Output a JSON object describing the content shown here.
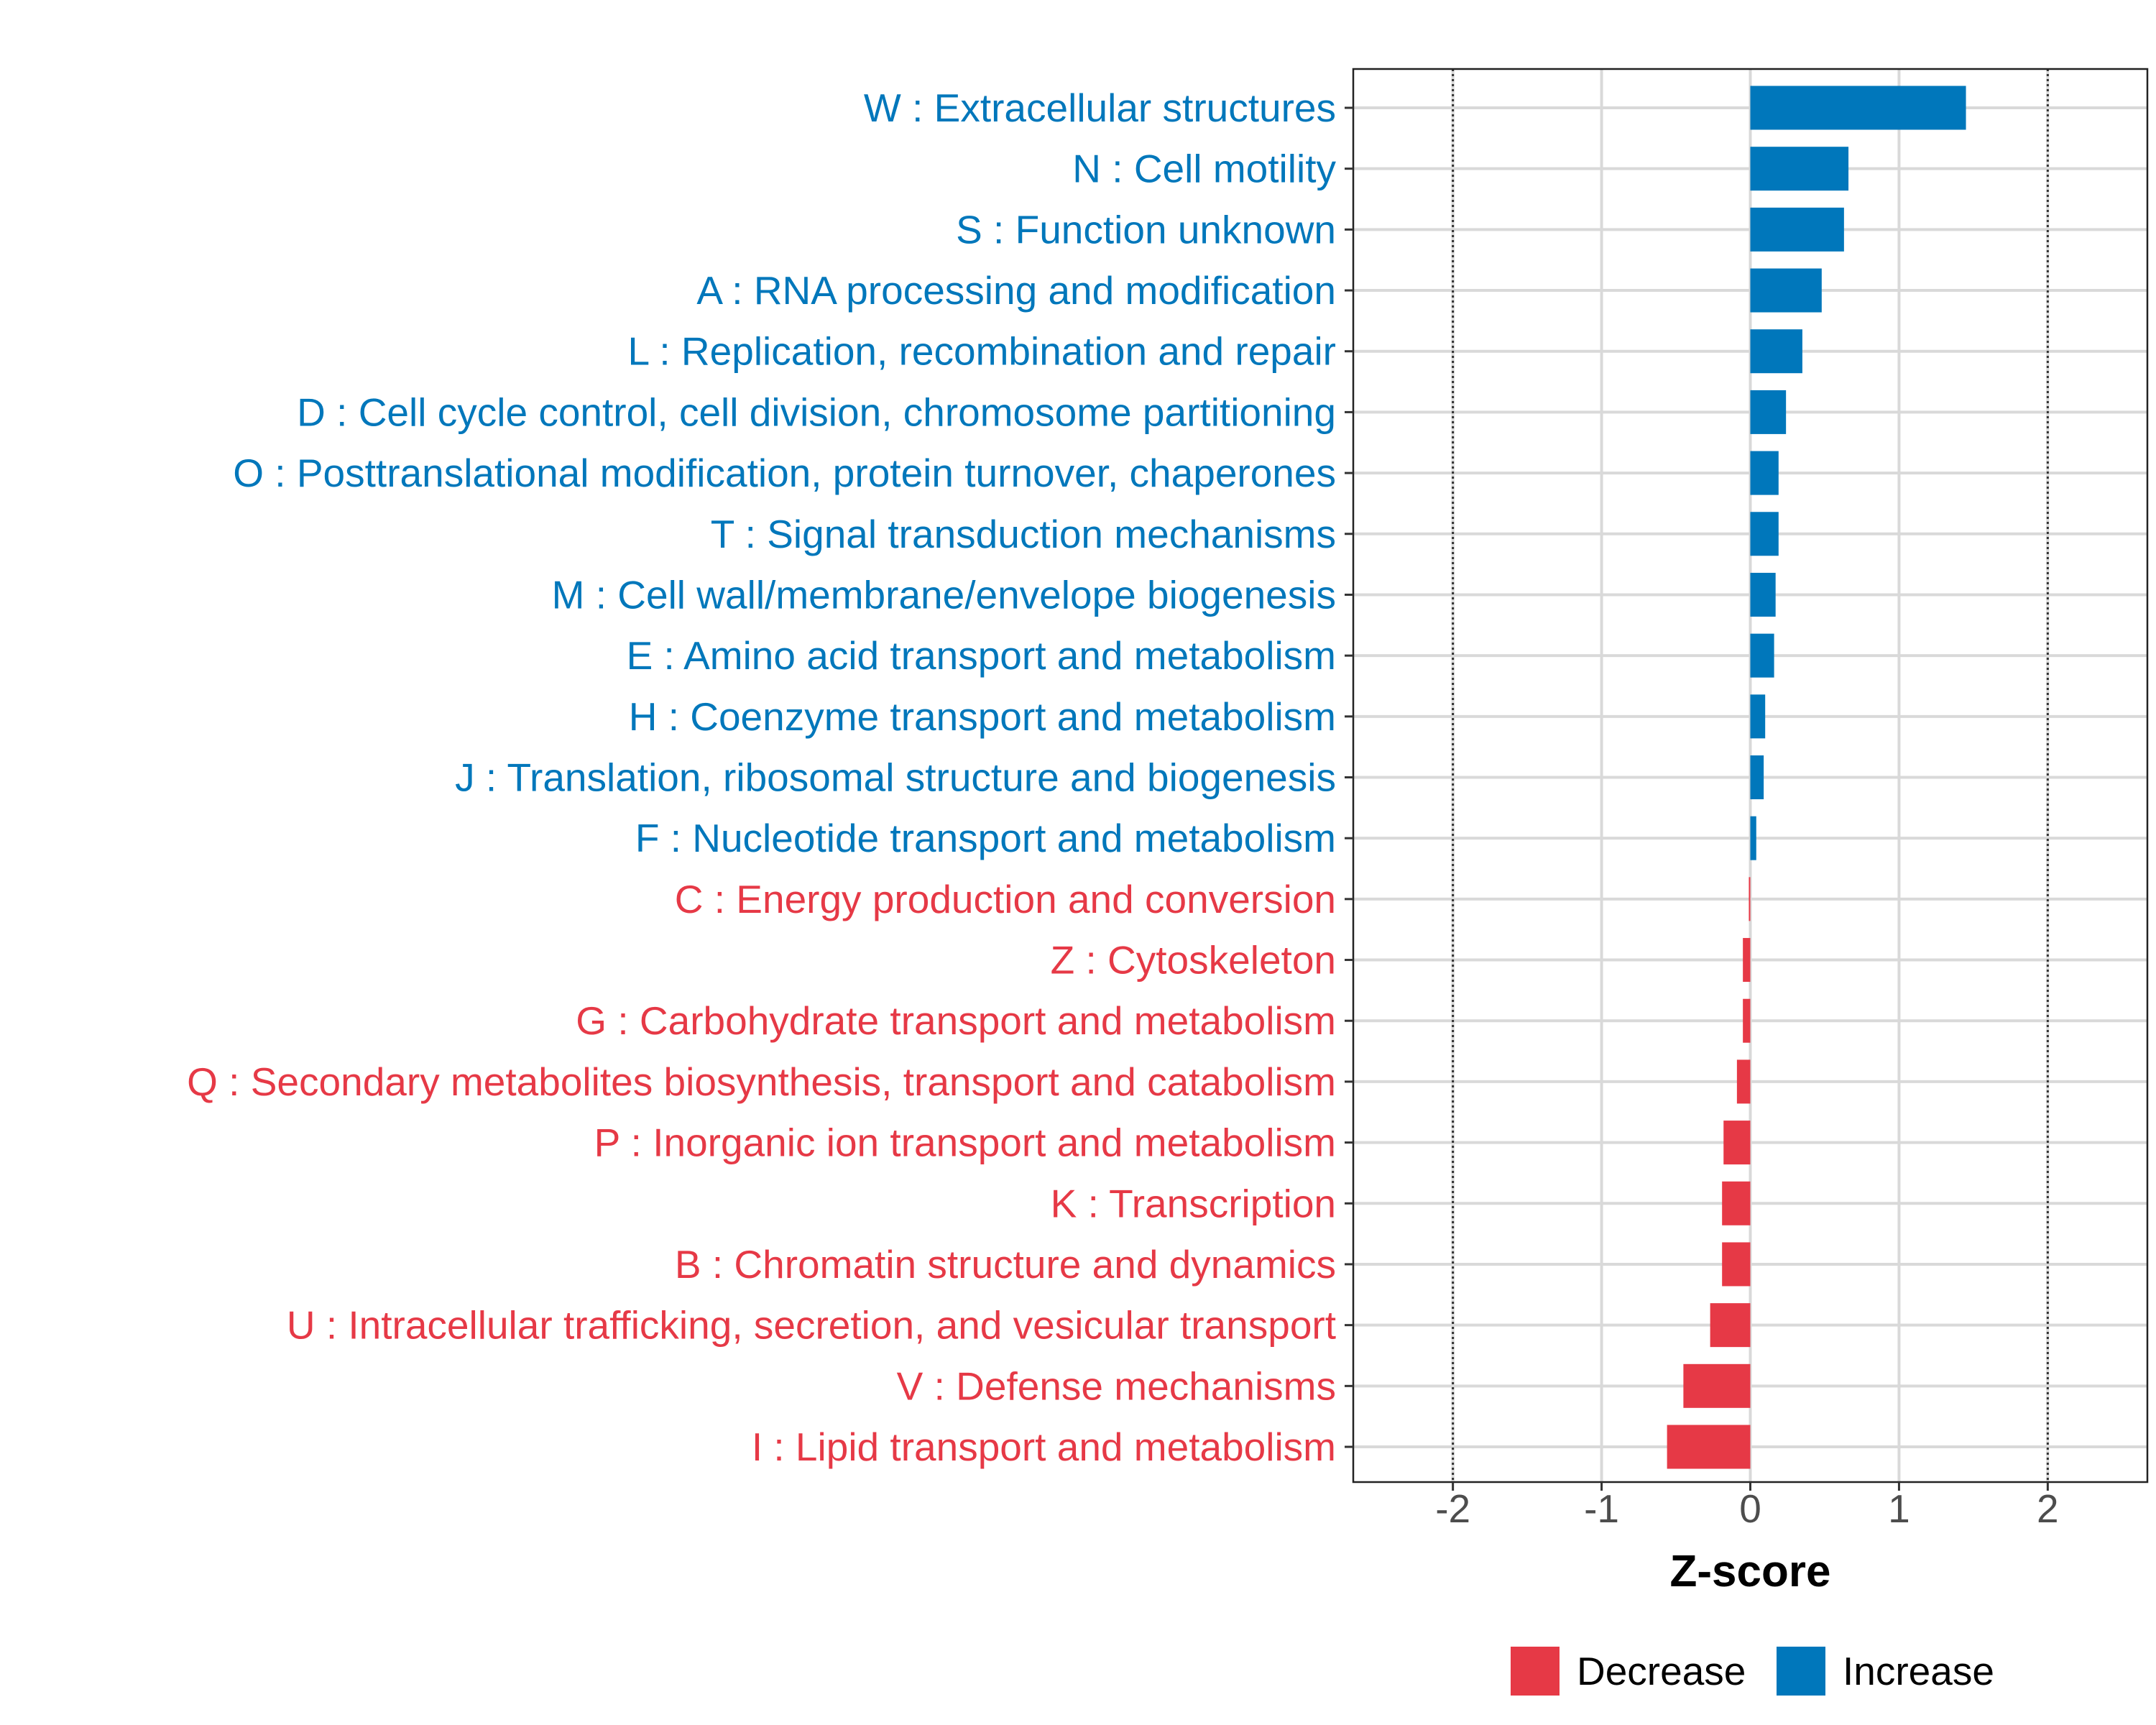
{
  "chart_data": {
    "type": "bar",
    "orientation": "horizontal",
    "title": "",
    "xlabel": "Z-score",
    "ylabel": "",
    "xlim": [
      -2.67,
      2.67
    ],
    "x_ticks": [
      -2,
      -1,
      0,
      1,
      2
    ],
    "x_tick_labels": [
      "-2",
      "-1",
      "0",
      "1",
      "2"
    ],
    "reference_lines": [
      -2,
      2
    ],
    "grid": true,
    "legend": {
      "position": "bottom",
      "entries": [
        {
          "label": "Decrease",
          "color": "#E63946"
        },
        {
          "label": "Increase",
          "color": "#0077BB"
        }
      ]
    },
    "categories": [
      "W : Extracellular structures",
      "N : Cell motility",
      "S : Function unknown",
      "A : RNA processing and modification",
      "L : Replication, recombination and repair",
      "D : Cell cycle control, cell division, chromosome partitioning",
      "O : Posttranslational modification, protein turnover, chaperones",
      "T : Signal transduction mechanisms",
      "M : Cell wall/membrane/envelope biogenesis",
      "E : Amino acid transport and metabolism",
      "H : Coenzyme transport and metabolism",
      "J : Translation, ribosomal structure and biogenesis",
      "F : Nucleotide transport and metabolism",
      "C : Energy production and conversion",
      "Z : Cytoskeleton",
      "G : Carbohydrate transport and metabolism",
      "Q : Secondary metabolites biosynthesis, transport and catabolism",
      "P : Inorganic ion transport and metabolism",
      "K : Transcription",
      "B : Chromatin structure and dynamics",
      "U : Intracellular trafficking, secretion, and vesicular transport",
      "V : Defense mechanisms",
      "I : Lipid transport and metabolism"
    ],
    "values": [
      1.45,
      0.66,
      0.63,
      0.48,
      0.35,
      0.24,
      0.19,
      0.19,
      0.17,
      0.16,
      0.1,
      0.09,
      0.04,
      -0.01,
      -0.05,
      -0.05,
      -0.09,
      -0.18,
      -0.19,
      -0.19,
      -0.27,
      -0.45,
      -0.56
    ],
    "groups": [
      "Increase",
      "Increase",
      "Increase",
      "Increase",
      "Increase",
      "Increase",
      "Increase",
      "Increase",
      "Increase",
      "Increase",
      "Increase",
      "Increase",
      "Increase",
      "Decrease",
      "Decrease",
      "Decrease",
      "Decrease",
      "Decrease",
      "Decrease",
      "Decrease",
      "Decrease",
      "Decrease",
      "Decrease"
    ]
  }
}
